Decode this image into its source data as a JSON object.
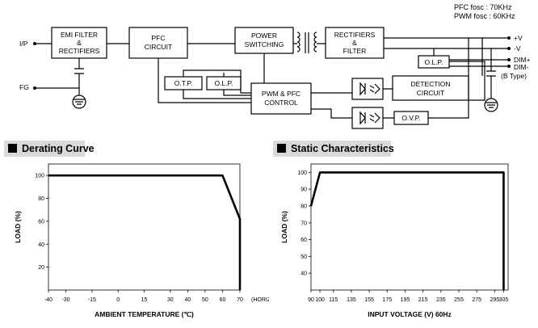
{
  "diagram": {
    "notes": {
      "pfc_fosc": "PFC fosc : 70KHz",
      "pwm_fosc": "PWM fosc : 60KHz"
    },
    "pins": {
      "ip": "I/P",
      "fg": "FG",
      "vplus": "+V",
      "vminus": "-V",
      "dimplus": "DIM+",
      "dimminus": "DIM-",
      "btype": "(B Type)"
    },
    "blocks": {
      "emi_line1": "EMI FILTER",
      "emi_line2": "&",
      "emi_line3": "RECTIFIERS",
      "pfc_line1": "PFC",
      "pfc_line2": "CIRCUIT",
      "power_line1": "POWER",
      "power_line2": "SWITCHING",
      "rect_line1": "RECTIFIERS",
      "rect_line2": "&",
      "rect_line3": "FILTER",
      "otp": "O.T.P.",
      "olp_left": "O.L.P.",
      "olp_right": "O.L.P.",
      "pwm_line1": "PWM & PFC",
      "pwm_line2": "CONTROL",
      "detect_line1": "DETECTION",
      "detect_line2": "CIRCUIT",
      "ovp": "O.V.P."
    }
  },
  "chart_data": [
    {
      "type": "line",
      "title": "Derating Curve",
      "xlabel": "AMBIENT TEMPERATURE (℃)",
      "ylabel": "LOAD (%)",
      "x_ticks": [
        -40,
        -30,
        -15,
        0,
        15,
        30,
        40,
        50,
        60,
        70
      ],
      "x_tick_note": "(HORIZONTAL)",
      "y_ticks": [
        20,
        40,
        60,
        80,
        100
      ],
      "xlim": [
        -40,
        70
      ],
      "ylim": [
        0,
        110
      ],
      "grid": false,
      "series": [
        {
          "x": [
            -40,
            60,
            70,
            70
          ],
          "y": [
            100,
            100,
            62,
            0
          ]
        }
      ]
    },
    {
      "type": "line",
      "title": "Static Characteristics",
      "xlabel": "INPUT VOLTAGE (V) 60Hz",
      "ylabel": "LOAD (%)",
      "x_ticks": [
        90,
        100,
        115,
        135,
        155,
        175,
        195,
        215,
        235,
        255,
        275,
        295,
        305
      ],
      "y_ticks": [
        40,
        50,
        60,
        70,
        80,
        90,
        100
      ],
      "xlim": [
        90,
        310
      ],
      "ylim": [
        30,
        105
      ],
      "grid": false,
      "series": [
        {
          "x": [
            90,
            100,
            305,
            305
          ],
          "y": [
            80,
            100,
            100,
            30
          ]
        }
      ]
    }
  ]
}
